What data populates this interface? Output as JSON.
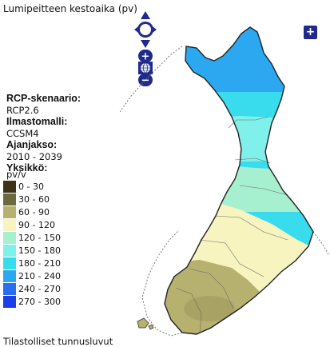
{
  "header": {
    "title": "Lumipeitteen kestoaika (pv)"
  },
  "legend": {
    "scenario_label": "RCP-skenaario:",
    "scenario_value": "RCP2.6",
    "model_label": "Ilmastomalli:",
    "model_value": "CCSM4",
    "period_label": "Ajanjakso:",
    "period_value": "2010 - 2039",
    "unit_label": "Yksikkö:",
    "unit_value": "pv/v",
    "classes": [
      {
        "label": "0 - 30",
        "color": "#3b3218"
      },
      {
        "label": "30 - 60",
        "color": "#6c6a3c"
      },
      {
        "label": "60 - 90",
        "color": "#b7b170"
      },
      {
        "label": "90 - 120",
        "color": "#f7f4c0"
      },
      {
        "label": "120 - 150",
        "color": "#a6efcf"
      },
      {
        "label": "150 - 180",
        "color": "#7ff0ea"
      },
      {
        "label": "180 - 210",
        "color": "#38dcec"
      },
      {
        "label": "210 - 240",
        "color": "#2ba8f0"
      },
      {
        "label": "240 - 270",
        "color": "#2a6ef0"
      },
      {
        "label": "270 - 300",
        "color": "#1c3fe8"
      }
    ]
  },
  "controls": {
    "zoom_in": "+",
    "zoom_out": "−",
    "layer_switcher": "+"
  },
  "footer": {
    "link_text": "Tilastolliset tunnusluvut"
  }
}
